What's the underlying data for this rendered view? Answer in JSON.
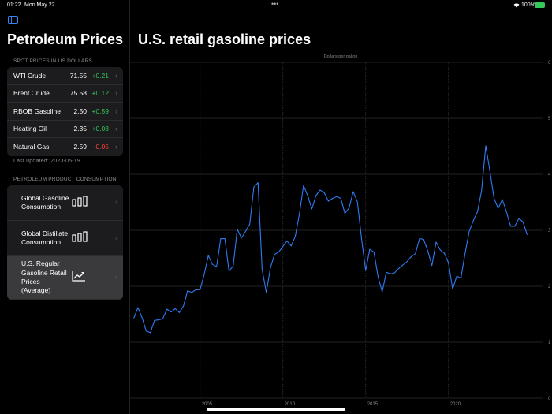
{
  "status": {
    "time": "01:22",
    "date": "Mon May 22",
    "battery": "100%",
    "wifi_icon": "wifi-icon",
    "battery_icon": "battery-charging-icon"
  },
  "sidebar": {
    "title": "Petroleum Prices",
    "toggle_icon": "sidebar-icon",
    "spot_header": "SPOT PRICES IN US DOLLARS",
    "spot": [
      {
        "name": "WTI Crude",
        "price": "71.55",
        "change": "+0.21"
      },
      {
        "name": "Brent Crude",
        "price": "75.58",
        "change": "+0.12"
      },
      {
        "name": "RBOB Gasoline",
        "price": "2.50",
        "change": "+0.59"
      },
      {
        "name": "Heating Oil",
        "price": "2.35",
        "change": "+0.03"
      },
      {
        "name": "Natural Gas",
        "price": "2.59",
        "change": "-0.05"
      }
    ],
    "last_updated": "Last updated: 2023-05-19",
    "consumption_header": "PETROLEUM PRODUCT CONSUMPTION",
    "consumption": [
      {
        "label": "Global Gasoline Consumption",
        "icon": "bar-chart-icon"
      },
      {
        "label": "Global Distillate Consumption",
        "icon": "bar-chart-icon"
      },
      {
        "label": "U.S. Regular Gasoline Retail Prices (Average)",
        "icon": "line-chart-icon",
        "selected": true
      }
    ]
  },
  "colors": {
    "up": "#34c759",
    "down": "#ff453a",
    "line": "#2f7bf5",
    "accent": "#3a82f7"
  },
  "main": {
    "title": "U.S. retail gasoline prices"
  },
  "chart_data": {
    "type": "line",
    "title": "",
    "ylabel": "Dollars per gallon",
    "xlabel": "",
    "ylim": [
      0,
      6
    ],
    "yticks": [
      "0",
      "1",
      "2",
      "3",
      "4",
      "5",
      "6"
    ],
    "xticks": [
      "2005",
      "2010",
      "2015",
      "2020"
    ],
    "x_start": 2001.0,
    "x_step": 0.25,
    "grid": true,
    "y_axis_side": "right",
    "values": [
      1.43,
      1.62,
      1.44,
      1.2,
      1.17,
      1.39,
      1.4,
      1.42,
      1.59,
      1.54,
      1.6,
      1.53,
      1.65,
      1.92,
      1.89,
      1.94,
      1.94,
      2.21,
      2.55,
      2.39,
      2.35,
      2.85,
      2.85,
      2.27,
      2.36,
      3.02,
      2.86,
      2.98,
      3.11,
      3.77,
      3.85,
      2.3,
      1.89,
      2.33,
      2.57,
      2.61,
      2.71,
      2.81,
      2.72,
      2.89,
      3.29,
      3.8,
      3.62,
      3.38,
      3.62,
      3.72,
      3.67,
      3.52,
      3.57,
      3.6,
      3.57,
      3.3,
      3.4,
      3.69,
      3.51,
      2.86,
      2.28,
      2.66,
      2.61,
      2.17,
      1.9,
      2.25,
      2.22,
      2.24,
      2.32,
      2.38,
      2.44,
      2.53,
      2.58,
      2.85,
      2.84,
      2.63,
      2.37,
      2.79,
      2.65,
      2.59,
      2.42,
      1.95,
      2.18,
      2.15,
      2.58,
      2.98,
      3.17,
      3.33,
      3.71,
      4.51,
      4.06,
      3.57,
      3.39,
      3.55,
      3.33,
      3.07,
      3.07,
      3.21,
      3.15,
      2.92
    ]
  }
}
